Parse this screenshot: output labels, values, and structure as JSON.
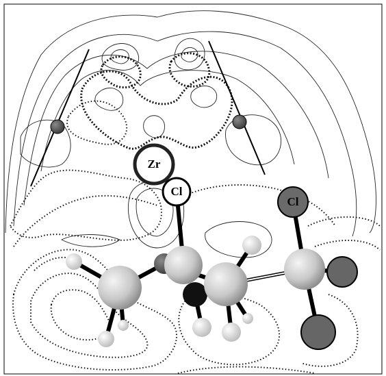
{
  "atoms": [
    {
      "label": "Zr"
    },
    {
      "label": "Cl"
    },
    {
      "label": "Cl"
    }
  ]
}
